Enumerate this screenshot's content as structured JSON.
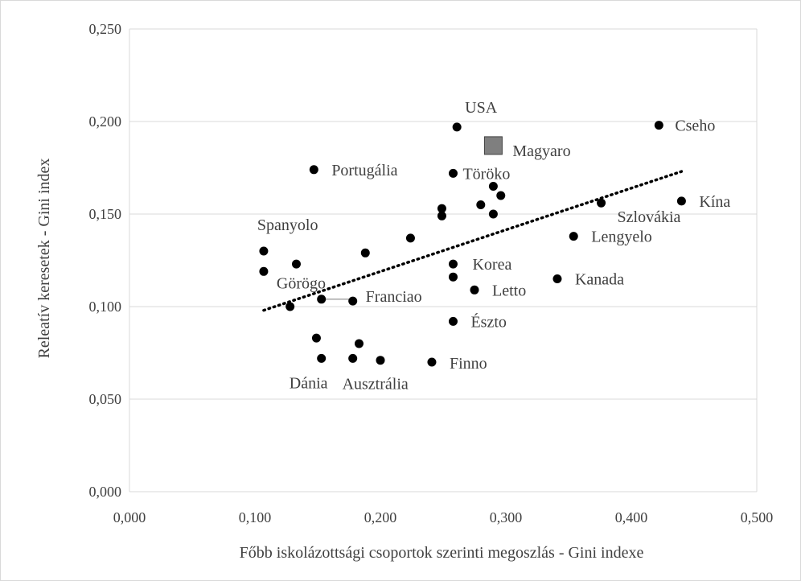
{
  "chart_data": {
    "type": "scatter",
    "xlabel": "Főbb iskolázottsági csoportok szerinti megoszlás - Gini indexe",
    "ylabel": "Releatív keresetek - Gini index",
    "xlim": [
      0,
      0.5
    ],
    "ylim": [
      0,
      0.25
    ],
    "x_ticks": [
      "0,000",
      "0,100",
      "0,200",
      "0,300",
      "0,400",
      "0,500"
    ],
    "y_ticks": [
      "0,000",
      "0,050",
      "0,100",
      "0,150",
      "0,200",
      "0,250"
    ],
    "grid": "horizontal",
    "trendline": {
      "style": "dotted",
      "x": [
        0.107,
        0.44
      ],
      "y": [
        0.098,
        0.173
      ]
    },
    "highlight_point": {
      "label": "Magyaro",
      "x": 0.29,
      "y": 0.187,
      "marker": "square",
      "color": "#7f7f7f"
    },
    "points": [
      {
        "x": 0.261,
        "y": 0.197,
        "label": "USA"
      },
      {
        "x": 0.422,
        "y": 0.198,
        "label": "Cseho"
      },
      {
        "x": 0.147,
        "y": 0.174,
        "label": "Portugália"
      },
      {
        "x": 0.258,
        "y": 0.172,
        "label": "Töröko"
      },
      {
        "x": 0.44,
        "y": 0.157,
        "label": "Kína"
      },
      {
        "x": 0.376,
        "y": 0.156,
        "label": "Szlovákia"
      },
      {
        "x": 0.354,
        "y": 0.138,
        "label": "Lengyelo"
      },
      {
        "x": 0.107,
        "y": 0.13,
        "label": "Spanyolo"
      },
      {
        "x": 0.258,
        "y": 0.123,
        "label": "Korea"
      },
      {
        "x": 0.107,
        "y": 0.119,
        "label": "Görögo"
      },
      {
        "x": 0.341,
        "y": 0.115,
        "label": "Kanada"
      },
      {
        "x": 0.275,
        "y": 0.109,
        "label": "Letto"
      },
      {
        "x": 0.178,
        "y": 0.103,
        "label": "Franciao"
      },
      {
        "x": 0.258,
        "y": 0.092,
        "label": "Észto"
      },
      {
        "x": 0.241,
        "y": 0.07,
        "label": "Finno"
      },
      {
        "x": 0.153,
        "y": 0.072,
        "label": "Dánia"
      },
      {
        "x": 0.178,
        "y": 0.072,
        "label": "Ausztrália"
      },
      {
        "x": 0.29,
        "y": 0.165,
        "label": ""
      },
      {
        "x": 0.296,
        "y": 0.16,
        "label": ""
      },
      {
        "x": 0.249,
        "y": 0.153,
        "label": ""
      },
      {
        "x": 0.249,
        "y": 0.149,
        "label": ""
      },
      {
        "x": 0.28,
        "y": 0.155,
        "label": ""
      },
      {
        "x": 0.29,
        "y": 0.15,
        "label": ""
      },
      {
        "x": 0.224,
        "y": 0.137,
        "label": ""
      },
      {
        "x": 0.188,
        "y": 0.129,
        "label": ""
      },
      {
        "x": 0.133,
        "y": 0.123,
        "label": ""
      },
      {
        "x": 0.258,
        "y": 0.116,
        "label": ""
      },
      {
        "x": 0.153,
        "y": 0.104,
        "label": ""
      },
      {
        "x": 0.128,
        "y": 0.1,
        "label": ""
      },
      {
        "x": 0.149,
        "y": 0.083,
        "label": ""
      },
      {
        "x": 0.183,
        "y": 0.08,
        "label": ""
      },
      {
        "x": 0.2,
        "y": 0.071,
        "label": ""
      }
    ]
  }
}
